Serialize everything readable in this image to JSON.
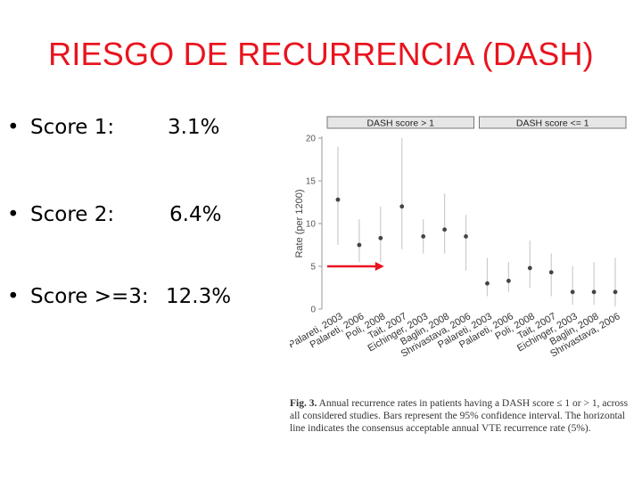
{
  "slide": {
    "title": "RIESGO DE RECURRENCIA (DASH)"
  },
  "bullets": [
    {
      "marker": "•",
      "label": "Score 1:",
      "value": "3.1%"
    },
    {
      "marker": "•",
      "label": "Score 2:",
      "value": "6.4%"
    },
    {
      "marker": "•",
      "label": "Score >=3:",
      "value": "12.3%"
    }
  ],
  "chart_data": {
    "type": "scatter",
    "panels": [
      "DASH score > 1",
      "DASH score <= 1"
    ],
    "ylabel": "Rate (per 1200)",
    "ylim": [
      0,
      20
    ],
    "yticks": [
      0,
      5,
      10,
      15,
      20
    ],
    "reference_line": 5,
    "categories": [
      "Palareti, 2003",
      "Palareti, 2006",
      "Poli, 2008",
      "Tait, 2007",
      "Eichinger, 2003",
      "Baglin, 2008",
      "Shrivastava, 2006",
      "Palareti, 2003",
      "Palareti, 2006",
      "Poli, 2008",
      "Tait, 2007",
      "Eichinger, 2003",
      "Baglin, 2008",
      "Shrivastava, 2006"
    ],
    "points": [
      {
        "panel": 0,
        "value": 12.8,
        "lower": 7.5,
        "upper": 19.0
      },
      {
        "panel": 0,
        "value": 7.5,
        "lower": 5.5,
        "upper": 10.5
      },
      {
        "panel": 0,
        "value": 8.3,
        "lower": 5.5,
        "upper": 12.0
      },
      {
        "panel": 0,
        "value": 12.0,
        "lower": 7.0,
        "upper": 20.0
      },
      {
        "panel": 0,
        "value": 8.5,
        "lower": 6.5,
        "upper": 10.5
      },
      {
        "panel": 0,
        "value": 9.3,
        "lower": 6.5,
        "upper": 13.5
      },
      {
        "panel": 0,
        "value": 8.5,
        "lower": 4.5,
        "upper": 11.0
      },
      {
        "panel": 1,
        "value": 3.0,
        "lower": 1.5,
        "upper": 6.0
      },
      {
        "panel": 1,
        "value": 3.3,
        "lower": 2.0,
        "upper": 5.5
      },
      {
        "panel": 1,
        "value": 4.8,
        "lower": 2.5,
        "upper": 8.0
      },
      {
        "panel": 1,
        "value": 4.3,
        "lower": 1.5,
        "upper": 6.5
      },
      {
        "panel": 1,
        "value": 2.0,
        "lower": 0.5,
        "upper": 5.0
      },
      {
        "panel": 1,
        "value": 2.0,
        "lower": 0.5,
        "upper": 5.5
      },
      {
        "panel": 1,
        "value": 2.0,
        "lower": 0.3,
        "upper": 6.0
      }
    ],
    "arrow_color": "#e8141e",
    "point_color": "#444444",
    "errorbar_color": "#cccccc"
  },
  "caption": {
    "label": "Fig. 3.",
    "text": "Annual recurrence rates in patients having a DASH score ≤ 1 or > 1, across all considered studies. Bars represent the 95% confidence interval. The horizontal line indicates the consensus acceptable annual VTE recurrence rate (5%)."
  }
}
